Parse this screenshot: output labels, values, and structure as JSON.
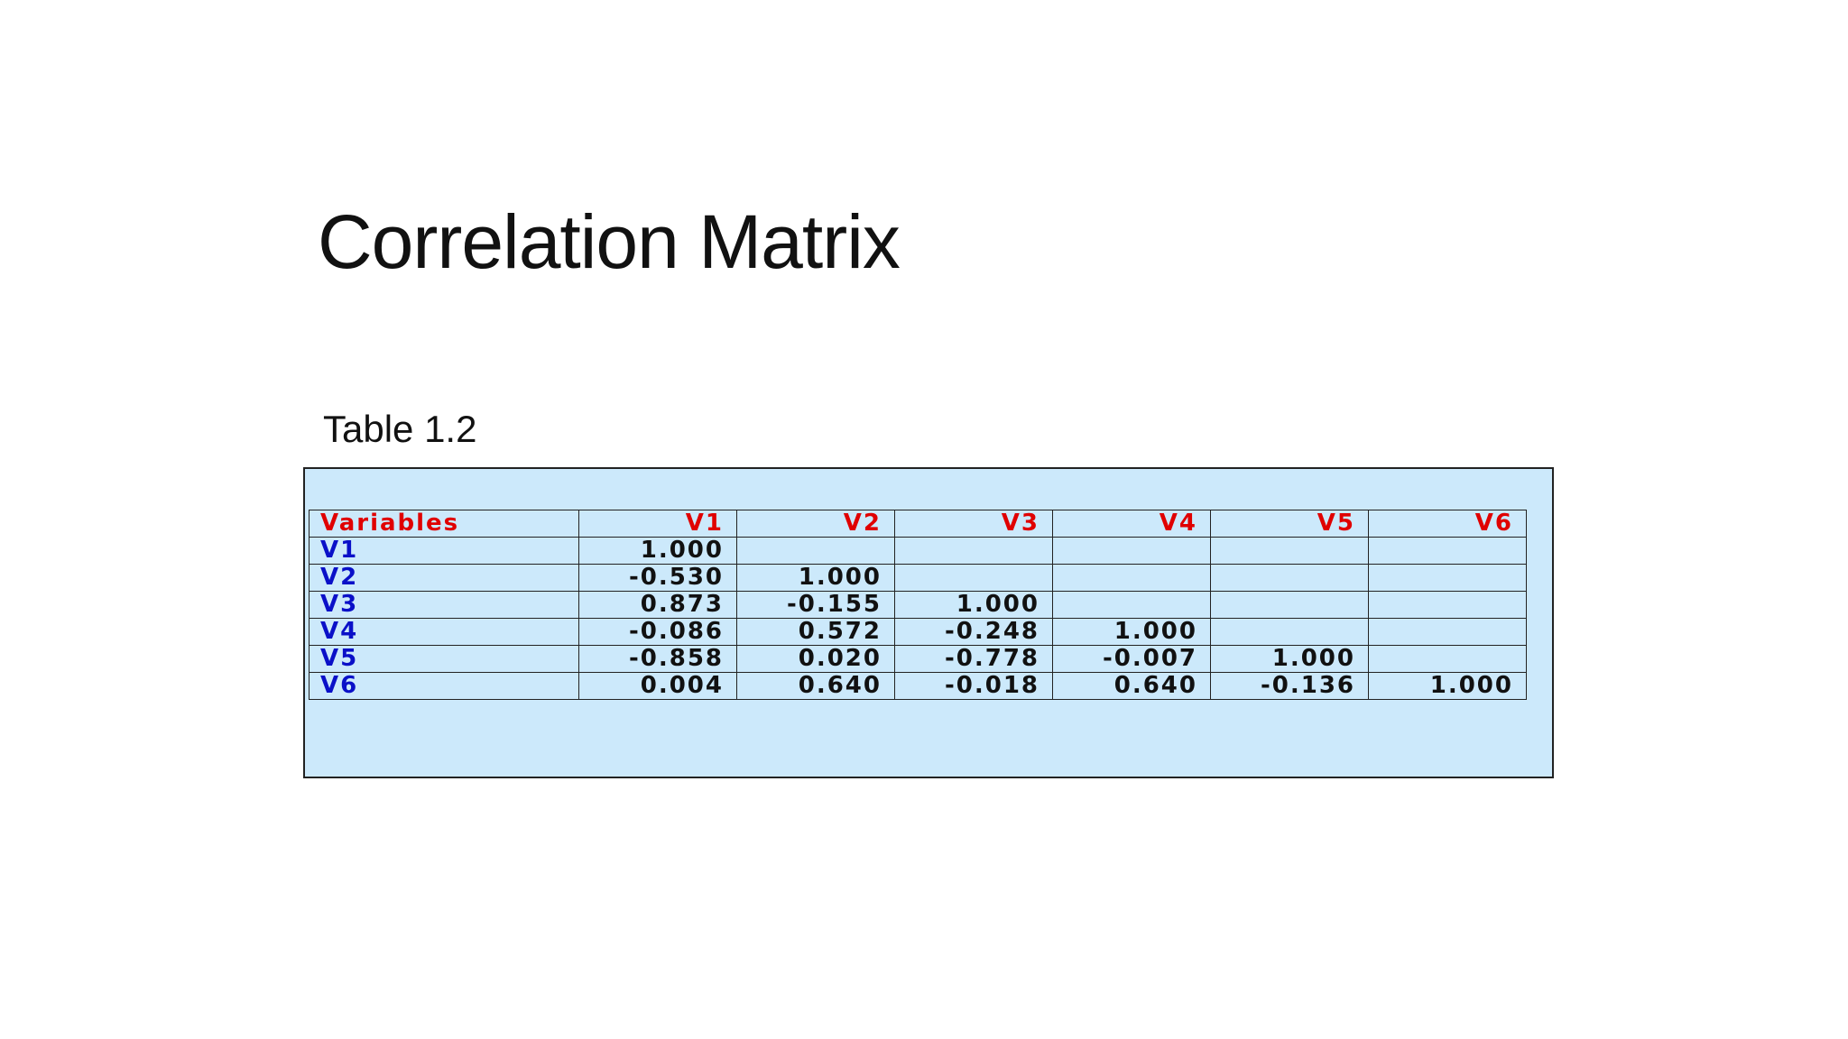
{
  "slide": {
    "title": "Correlation Matrix",
    "caption": "Table 1.2"
  },
  "colors": {
    "panel_background": "#cce9fb",
    "header_text": "#e00000",
    "row_label_text": "#0a10c8",
    "value_text": "#111111"
  },
  "table": {
    "corner_label": "Variables",
    "columns": [
      "V1",
      "V2",
      "V3",
      "V4",
      "V5",
      "V6"
    ],
    "rows": [
      {
        "label": "V1",
        "values": [
          "1.000",
          "",
          "",
          "",
          "",
          ""
        ]
      },
      {
        "label": "V2",
        "values": [
          "-0.530",
          "1.000",
          "",
          "",
          "",
          ""
        ]
      },
      {
        "label": "V3",
        "values": [
          "0.873",
          "-0.155",
          "1.000",
          "",
          "",
          ""
        ]
      },
      {
        "label": "V4",
        "values": [
          "-0.086",
          "0.572",
          "-0.248",
          "1.000",
          "",
          ""
        ]
      },
      {
        "label": "V5",
        "values": [
          "-0.858",
          "0.020",
          "-0.778",
          "-0.007",
          "1.000",
          ""
        ]
      },
      {
        "label": "V6",
        "values": [
          "0.004",
          "0.640",
          "-0.018",
          "0.640",
          "-0.136",
          "1.000"
        ]
      }
    ]
  }
}
